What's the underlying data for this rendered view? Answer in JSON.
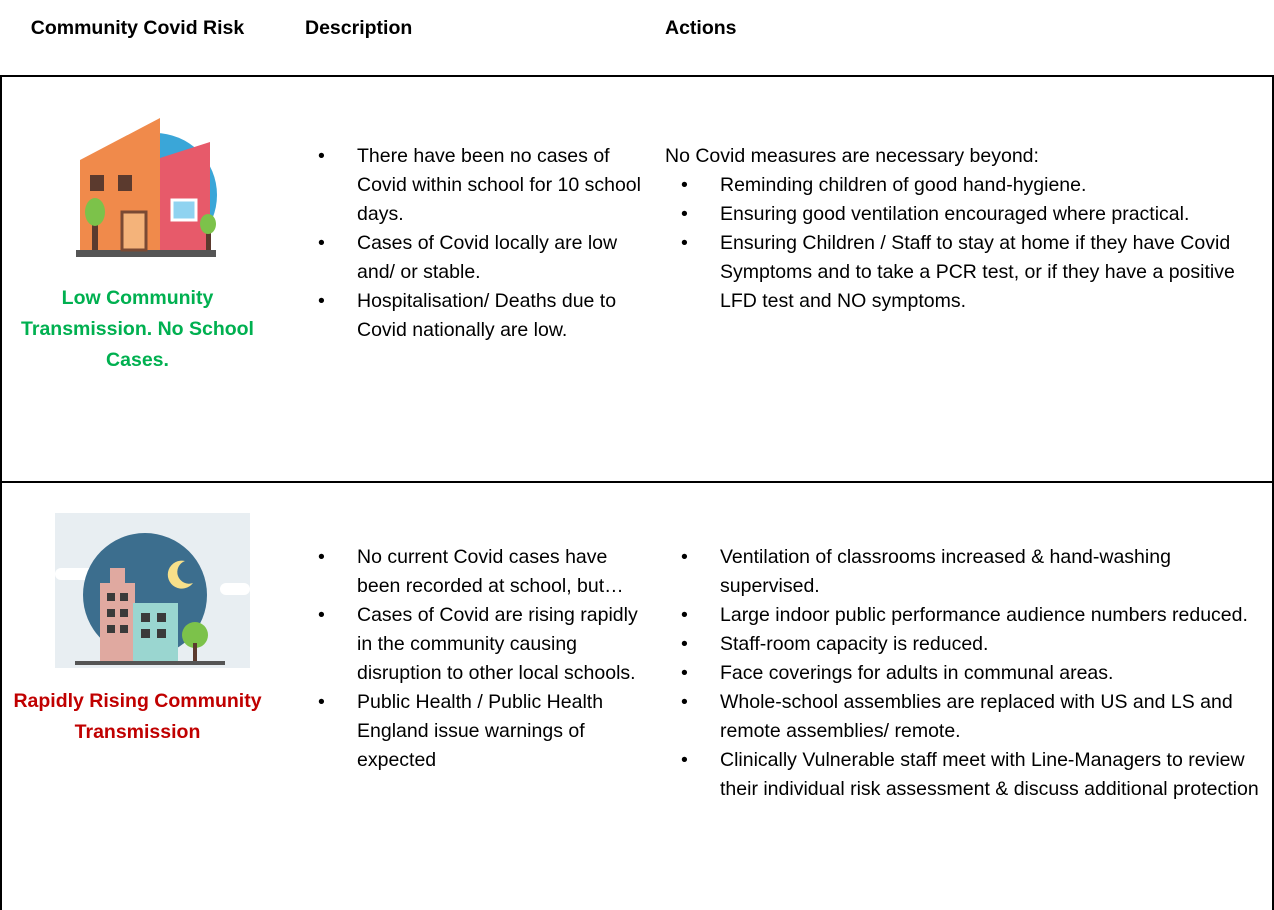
{
  "header": {
    "columns": [
      "Community Covid Risk",
      "Description",
      "Actions"
    ]
  },
  "rows": [
    {
      "risk": "Low Community Transmission. No School Cases.",
      "description": [
        "There have been no cases of Covid within school for 10 school days.",
        "Cases of Covid locally are low and/ or stable.",
        "Hospitalisation/ Deaths due to Covid nationally are low."
      ],
      "actions_intro": "No Covid measures are necessary beyond:",
      "actions": [
        "Reminding children of good hand-hygiene.",
        "Ensuring good ventilation encouraged where practical.",
        "Ensuring Children / Staff to stay at home if they have Covid Symptoms and to take a PCR test, or if they have a positive LFD test and NO symptoms."
      ]
    },
    {
      "risk": "Rapidly Rising Community Transmission",
      "description": [
        "No current Covid cases have been recorded at school, but…",
        "Cases of Covid are rising rapidly in the community causing disruption to other local schools.",
        "Public Health / Public Health England issue warnings of expected"
      ],
      "actions": [
        "Ventilation of classrooms increased & hand-washing supervised.",
        "Large indoor public performance audience numbers reduced.",
        "Staff-room capacity is reduced.",
        "Face coverings for adults in communal areas.",
        "Whole-school assemblies are replaced with US and LS  and remote assemblies/ remote.",
        "Clinically Vulnerable staff meet with Line-Managers to review their individual risk assessment & discuss additional protection"
      ]
    }
  ]
}
